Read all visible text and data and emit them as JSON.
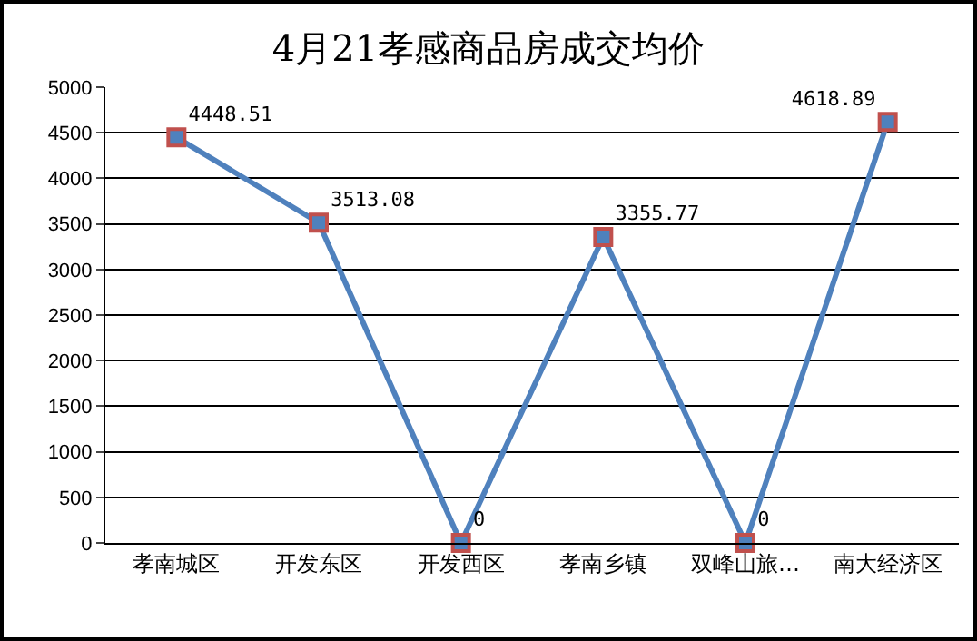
{
  "chart_data": {
    "type": "line",
    "title": "4月21孝感商品房成交均价",
    "categories": [
      "孝南城区",
      "开发东区",
      "开发西区",
      "孝南乡镇",
      "双峰山旅…",
      "南大经济区"
    ],
    "series": [
      {
        "color": "#4f81bd",
        "values": [
          4448.51,
          3513.08,
          0,
          3355.77,
          0,
          4618.89
        ]
      }
    ],
    "ylim": [
      0,
      5000
    ],
    "yticks": [
      0,
      500,
      1000,
      1500,
      2000,
      2500,
      3000,
      3500,
      4000,
      4500,
      5000
    ],
    "grid": "y",
    "marker": "square",
    "data_labels": true
  }
}
